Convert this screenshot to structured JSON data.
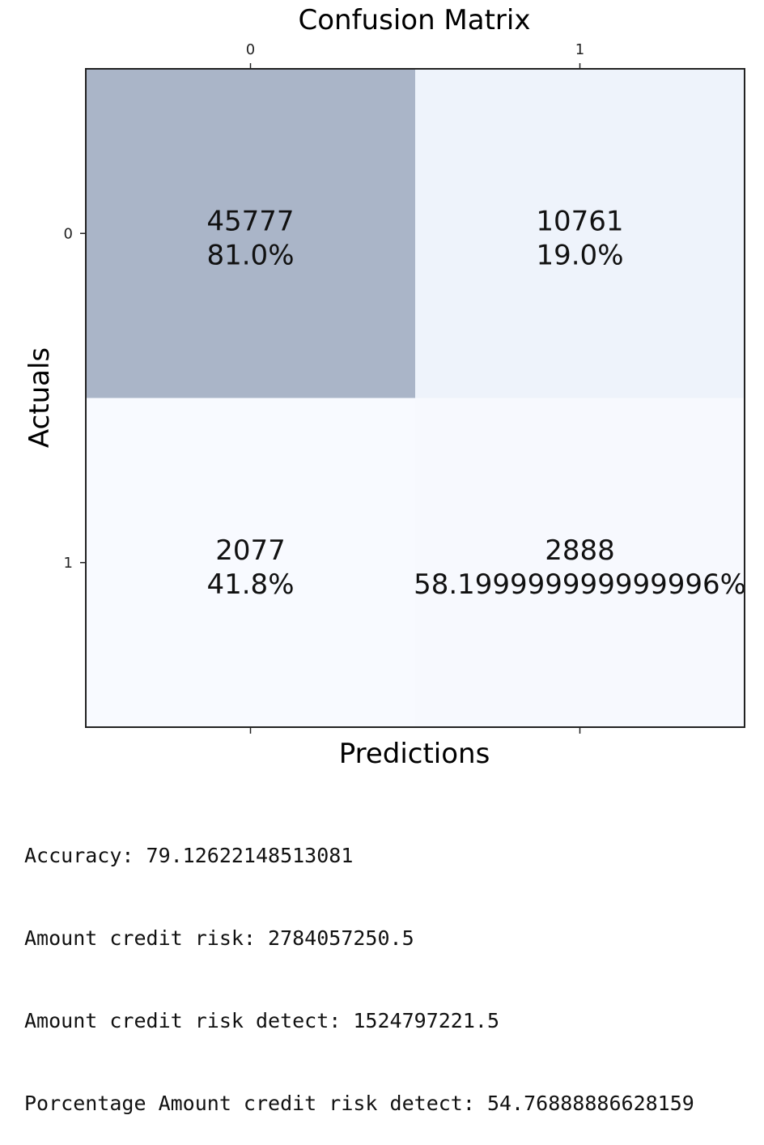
{
  "chart_data": {
    "type": "heatmap",
    "title": "Confusion Matrix",
    "xlabel": "Predictions",
    "ylabel": "Actuals",
    "x_tick_labels": [
      "0",
      "1"
    ],
    "y_tick_labels": [
      "0",
      "1"
    ],
    "cells": [
      {
        "row": 0,
        "col": 0,
        "count": "45777",
        "percent": "81.0%",
        "value": 45777,
        "color": "#aab5c8"
      },
      {
        "row": 0,
        "col": 1,
        "count": "10761",
        "percent": "19.0%",
        "value": 10761,
        "color": "#eef3fb"
      },
      {
        "row": 1,
        "col": 0,
        "count": "2077",
        "percent": "41.8%",
        "value": 2077,
        "color": "#f8faff"
      },
      {
        "row": 1,
        "col": 1,
        "count": "2888",
        "percent": "58.199999999999996%",
        "value": 2888,
        "color": "#f7f9fe"
      }
    ]
  },
  "output_lines": [
    "Accuracy: 79.12622148513081",
    "Amount credit risk: 2784057250.5",
    "Amount credit risk detect: 1524797221.5",
    "Porcentage Amount credit risk detect: 54.76888886628159"
  ]
}
